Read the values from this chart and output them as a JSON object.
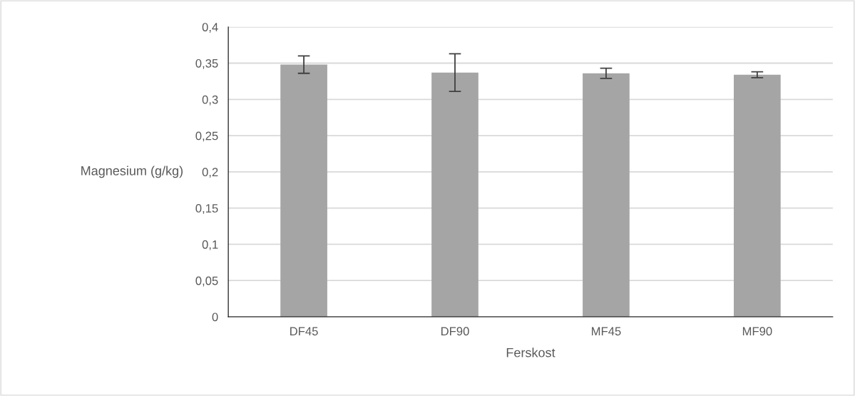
{
  "chart_data": {
    "type": "bar",
    "xlabel": "Ferskost",
    "ylabel": "Magnesium (g/kg)",
    "categories": [
      "DF45",
      "DF90",
      "MF45",
      "MF90"
    ],
    "values": [
      0.348,
      0.337,
      0.336,
      0.334
    ],
    "errors": [
      0.012,
      0.026,
      0.007,
      0.004
    ],
    "color": "#a5a5a5",
    "ylim": [
      0,
      0.4
    ],
    "yticks": [
      0,
      {
        "value": 0.05,
        "label": "0,05"
      },
      {
        "value": 0.1,
        "label": "0,1"
      },
      {
        "value": 0.15,
        "label": "0,15"
      },
      {
        "value": 0.2,
        "label": "0,2"
      },
      {
        "value": 0.25,
        "label": "0,25"
      },
      {
        "value": 0.3,
        "label": "0,3"
      },
      {
        "value": 0.35,
        "label": "0,35"
      },
      {
        "value": 0.4,
        "label": "0,4"
      }
    ],
    "grid": "y"
  }
}
